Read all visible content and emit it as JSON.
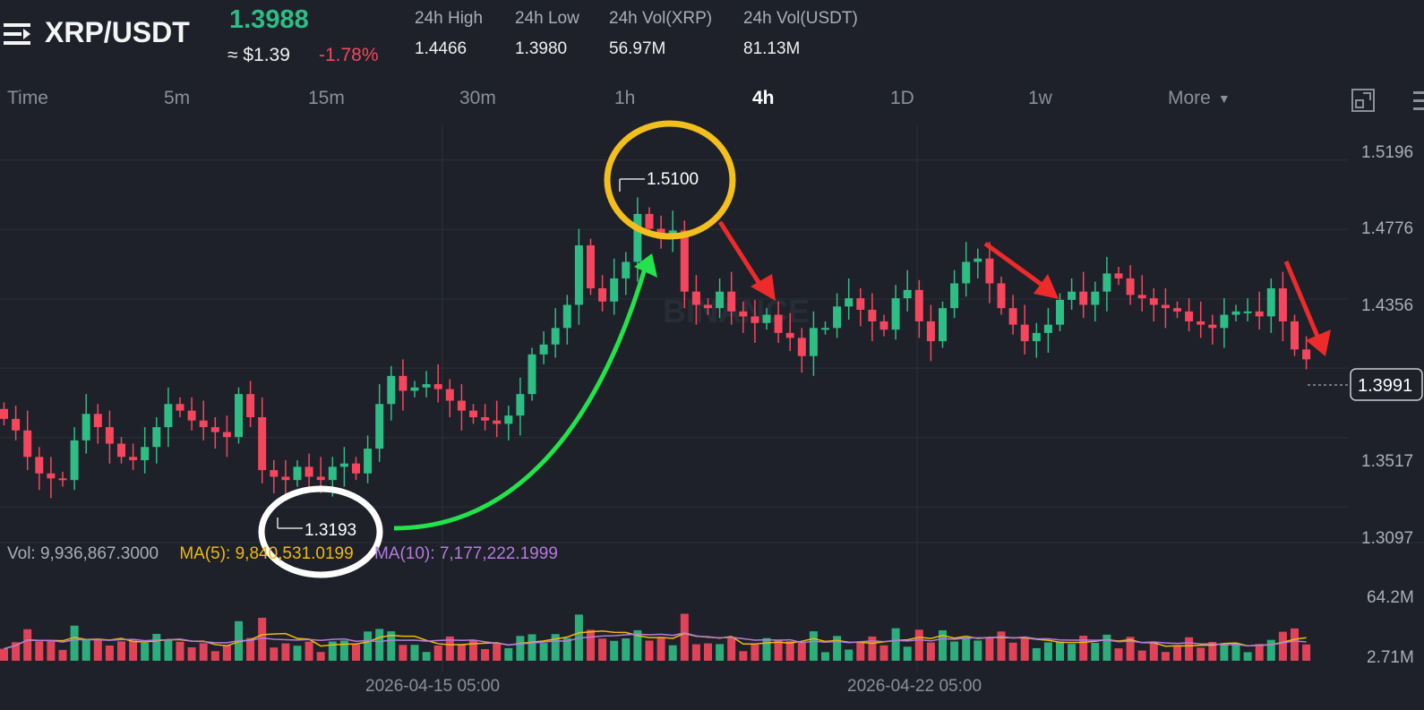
{
  "header": {
    "pair": "XRP/USDT",
    "last_price": "1.3988",
    "usd_price": "≈ $1.39",
    "change_pct": "-1.78%",
    "stats": [
      {
        "label": "24h High",
        "value": "1.4466"
      },
      {
        "label": "24h Low",
        "value": "1.3980"
      },
      {
        "label": "24h Vol(XRP)",
        "value": "56.97M"
      },
      {
        "label": "24h Vol(USDT)",
        "value": "81.13M"
      }
    ]
  },
  "tabs": [
    {
      "label": "Time"
    },
    {
      "label": "5m"
    },
    {
      "label": "15m"
    },
    {
      "label": "30m"
    },
    {
      "label": "1h"
    },
    {
      "label": "4h",
      "active": true
    },
    {
      "label": "1D"
    },
    {
      "label": "1w"
    },
    {
      "label": "More"
    }
  ],
  "icons": [
    "menu-icon",
    "fullscreen-icon",
    "settings-icon",
    "caret-down-icon"
  ],
  "chart": {
    "price_axis": [
      "1.5196",
      "1.4776",
      "1.4356",
      "1.3517",
      "1.3097"
    ],
    "current_price_tag": "1.3991",
    "high_marker": "1.5100",
    "low_marker": "1.3193",
    "watermark": "BINANCE",
    "volume_axis": [
      "64.2M",
      "2.71M"
    ],
    "volume_legend": {
      "vol": "Vol: 9,936,867.3000",
      "ma5": "MA(5): 9,840,531.0199",
      "ma10": "MA(10): 7,177,222.1999"
    },
    "date_labels": [
      "2026-04-15 05:00",
      "2026-04-22 05:00"
    ],
    "colors": {
      "up": "#2ebd85",
      "down": "#f6465d",
      "ma5": "#f0b90b",
      "ma10": "#b57bdc",
      "annot_up": "#22e34b",
      "annot_down": "#ee2a2a",
      "annot_high": "#f3bf1c",
      "annot_low": "#ffffff"
    }
  },
  "chart_data": {
    "type": "candlestick",
    "interval": "4h",
    "pair": "XRP/USDT",
    "y_axis_ticks": [
      1.3097,
      1.3517,
      1.4356,
      1.4776,
      1.5196
    ],
    "x_axis_labels": [
      "2026-04-15 05:00",
      "2026-04-22 05:00"
    ],
    "close": [
      1.363,
      1.356,
      1.34,
      1.33,
      1.327,
      1.326,
      1.35,
      1.366,
      1.358,
      1.348,
      1.34,
      1.338,
      1.346,
      1.358,
      1.372,
      1.368,
      1.362,
      1.358,
      1.355,
      1.352,
      1.378,
      1.364,
      1.332,
      1.328,
      1.326,
      1.334,
      1.328,
      1.326,
      1.334,
      1.336,
      1.33,
      1.345,
      1.372,
      1.389,
      1.38,
      1.382,
      1.384,
      1.381,
      1.374,
      1.368,
      1.364,
      1.362,
      1.36,
      1.365,
      1.378,
      1.402,
      1.408,
      1.418,
      1.432,
      1.468,
      1.442,
      1.434,
      1.448,
      1.458,
      1.487,
      1.478,
      1.472,
      1.477,
      1.44,
      1.432,
      1.43,
      1.44,
      1.428,
      1.425,
      1.421,
      1.426,
      1.415,
      1.412,
      1.401,
      1.418,
      1.418,
      1.431,
      1.436,
      1.429,
      1.422,
      1.417,
      1.436,
      1.441,
      1.422,
      1.41,
      1.43,
      1.445,
      1.458,
      1.46,
      1.445,
      1.43,
      1.42,
      1.41,
      1.415,
      1.42,
      1.435,
      1.44,
      1.432,
      1.44,
      1.451,
      1.448,
      1.438,
      1.436,
      1.432,
      1.43,
      1.428,
      1.422,
      1.42,
      1.418,
      1.426,
      1.428,
      1.428,
      1.425,
      1.442,
      1.422,
      1.405,
      1.399
    ],
    "notable_values": {
      "high": 1.51,
      "low": 1.3193,
      "last": 1.3991
    },
    "volume": {
      "legend": {
        "vol": 9936867.3,
        "ma5": 9840531.0199,
        "ma10": 7177222.1999
      },
      "axis": [
        "64.2M",
        "2.71M"
      ]
    }
  }
}
